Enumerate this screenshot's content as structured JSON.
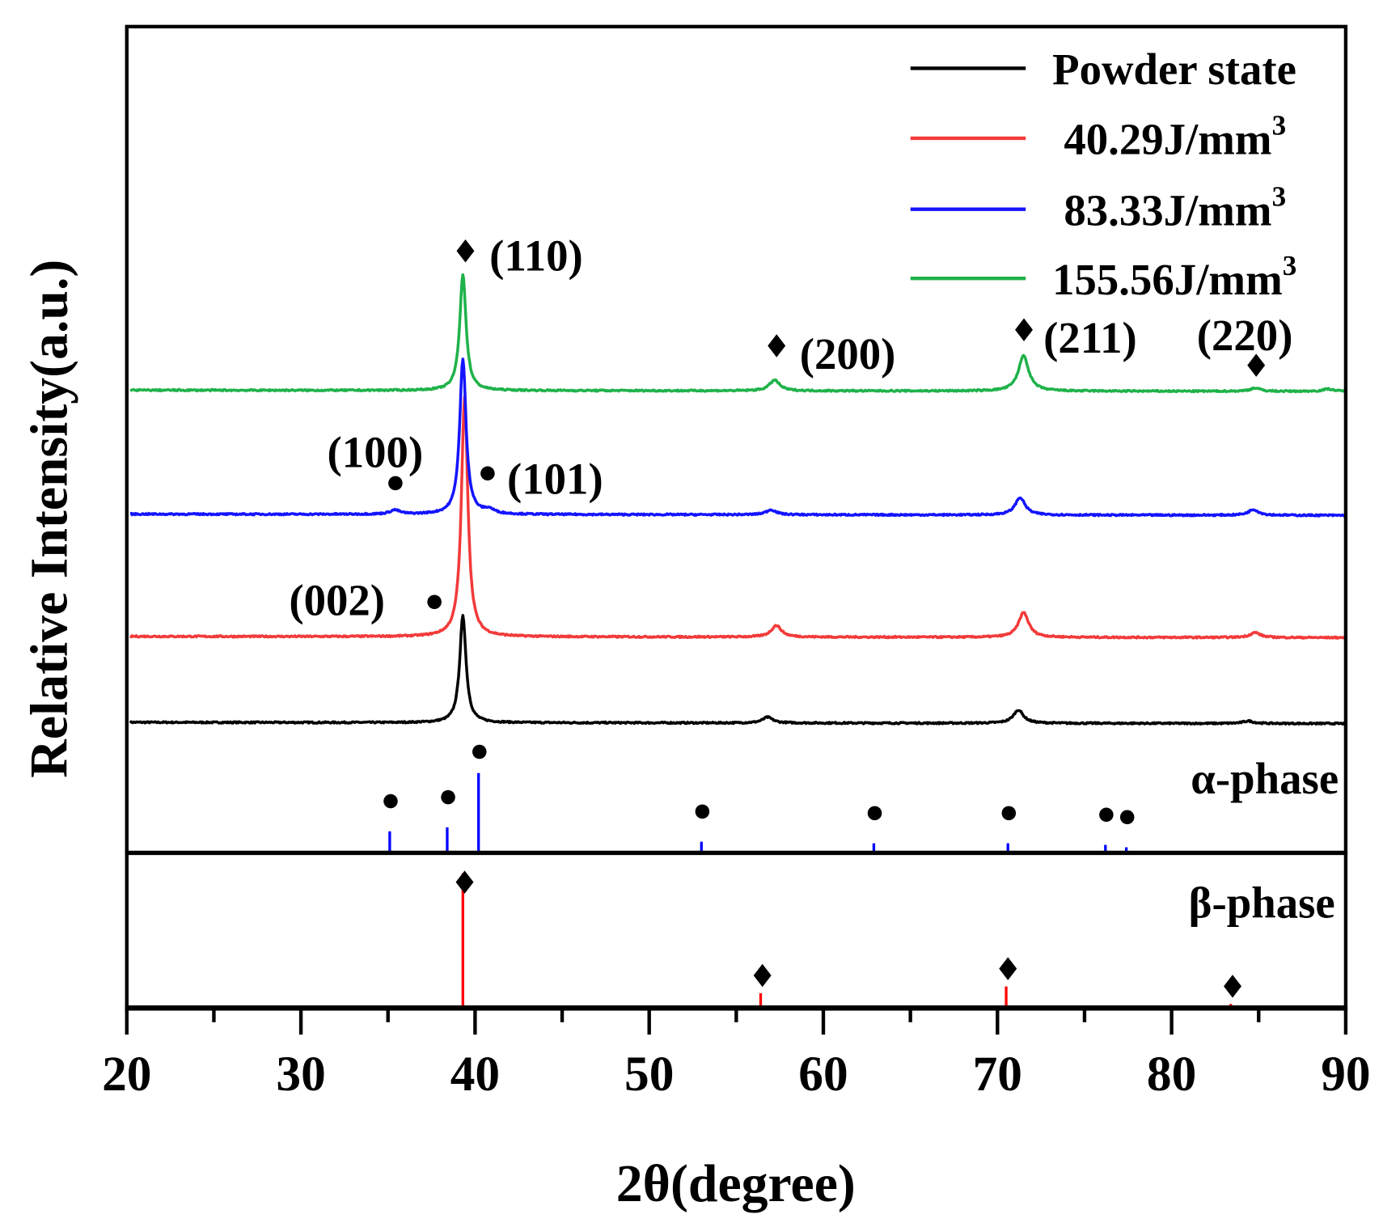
{
  "chart_data": {
    "type": "line",
    "xlabel": "2θ(degree)",
    "ylabel": "Relative Intensity(a.u.)",
    "xlim": [
      20,
      90
    ],
    "xticks": [
      20,
      30,
      40,
      50,
      60,
      70,
      80,
      90
    ],
    "xtick_labels": [
      "20",
      "30",
      "40",
      "50",
      "60",
      "70",
      "80",
      "90"
    ],
    "ylim": [
      0,
      100
    ],
    "y_ticks_shown": false,
    "grid": false,
    "legend_position": "top-right",
    "series": [
      {
        "name": "Powder state",
        "color": "#000000",
        "baseline": 15.8,
        "peaks": [
          {
            "x": 39.3,
            "h": 12.9
          },
          {
            "x": 56.8,
            "h": 0.7
          },
          {
            "x": 71.2,
            "h": 1.6
          },
          {
            "x": 84.4,
            "h": 0.3
          }
        ]
      },
      {
        "name": "40.29J/mm",
        "sup": "3",
        "color": "#f23a3a",
        "baseline": 26.2,
        "peaks": [
          {
            "x": 39.4,
            "h": 29
          },
          {
            "x": 57.3,
            "h": 1.4
          },
          {
            "x": 71.5,
            "h": 3.0
          },
          {
            "x": 84.8,
            "h": 0.6
          }
        ]
      },
      {
        "name": "83.33J/mm",
        "sup": "3",
        "color": "#1414ff",
        "baseline": 41.0,
        "peaks": [
          {
            "x": 35.4,
            "h": 0.5
          },
          {
            "x": 39.3,
            "h": 18.8
          },
          {
            "x": 40.8,
            "h": 0.5
          },
          {
            "x": 57.0,
            "h": 0.6
          },
          {
            "x": 71.3,
            "h": 2.1
          },
          {
            "x": 84.7,
            "h": 0.7
          }
        ]
      },
      {
        "name": "155.56J/mm",
        "sup": "3",
        "color": "#1fb24a",
        "baseline": 56.0,
        "peaks": [
          {
            "x": 39.3,
            "h": 14.0
          },
          {
            "x": 57.2,
            "h": 1.3
          },
          {
            "x": 71.5,
            "h": 4.3
          },
          {
            "x": 84.8,
            "h": 0.4
          },
          {
            "x": 89.0,
            "h": 0.3
          }
        ]
      }
    ],
    "reference_patterns": [
      {
        "label": "α-phase",
        "marker": "circle",
        "color": "#0000ff",
        "x": [
          35.1,
          38.4,
          40.2,
          53.0,
          62.9,
          70.6,
          76.2,
          77.4
        ],
        "intensity": [
          27,
          32,
          100,
          14,
          12,
          12,
          10,
          7
        ]
      },
      {
        "label": "β-phase",
        "marker": "diamond",
        "color": "#ff0000",
        "x": [
          39.3,
          56.4,
          70.5,
          83.4
        ],
        "intensity": [
          100,
          11,
          16,
          3
        ]
      }
    ],
    "annotations": [
      {
        "text": "(110)",
        "marker": "diamond"
      },
      {
        "text": "(200)",
        "marker": "diamond"
      },
      {
        "text": "(211)",
        "marker": "diamond"
      },
      {
        "text": "(220)",
        "marker": "diamond"
      },
      {
        "text": "(100)",
        "marker": "circle"
      },
      {
        "text": "(101)",
        "marker": "circle"
      },
      {
        "text": "(002)",
        "marker": "circle"
      }
    ]
  }
}
